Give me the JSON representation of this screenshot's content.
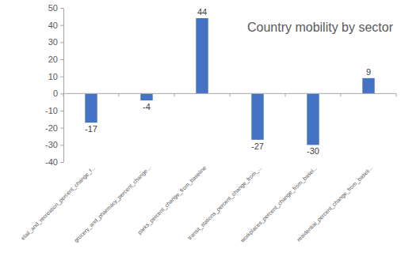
{
  "chart_data": {
    "type": "bar",
    "title": "Country mobility by sector",
    "categories": [
      "etail_and_recreation_percent_change_f...",
      "grocery_and_pharmacy_percent_change...",
      "parks_percent_change_from_baseline",
      "transit_stations_percent_change_from_...",
      "workplaces_percent_change_from_basel...",
      "residential_percent_change_from_baseli..."
    ],
    "values": [
      -17,
      -4,
      44,
      -27,
      -30,
      9
    ],
    "color": "#4472c4",
    "ylim": [
      -40,
      50
    ],
    "yticks": [
      -40,
      -30,
      -20,
      -10,
      0,
      10,
      20,
      30,
      40,
      50
    ],
    "grid": false,
    "data_labels": true
  }
}
